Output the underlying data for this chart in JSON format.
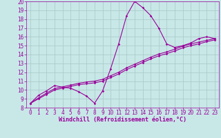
{
  "xlabel": "Windchill (Refroidissement éolien,°C)",
  "background_color": "#c8e8e8",
  "line_color": "#990099",
  "grid_color": "#a8c8c8",
  "x_data": [
    0,
    1,
    2,
    3,
    4,
    5,
    6,
    7,
    8,
    9,
    10,
    11,
    12,
    13,
    14,
    15,
    16,
    17,
    18,
    19,
    20,
    21,
    22,
    23
  ],
  "y_series1": [
    8.5,
    9.4,
    9.9,
    10.5,
    10.3,
    10.2,
    9.8,
    9.3,
    8.5,
    9.9,
    12.4,
    15.2,
    18.4,
    20.0,
    19.3,
    18.4,
    17.0,
    15.2,
    14.8,
    15.0,
    15.3,
    15.8,
    16.0,
    15.8
  ],
  "y_series2": [
    8.5,
    9.0,
    9.5,
    10.0,
    10.2,
    10.4,
    10.6,
    10.7,
    10.8,
    11.0,
    11.4,
    11.8,
    12.3,
    12.7,
    13.1,
    13.5,
    13.85,
    14.1,
    14.4,
    14.75,
    15.0,
    15.2,
    15.45,
    15.65
  ],
  "y_series3": [
    8.5,
    9.1,
    9.65,
    10.15,
    10.35,
    10.55,
    10.75,
    10.9,
    11.0,
    11.2,
    11.6,
    12.0,
    12.5,
    12.9,
    13.3,
    13.7,
    14.05,
    14.3,
    14.6,
    14.95,
    15.2,
    15.4,
    15.6,
    15.8
  ],
  "ylim": [
    8,
    20
  ],
  "xlim": [
    -0.5,
    23.5
  ],
  "yticks": [
    8,
    9,
    10,
    11,
    12,
    13,
    14,
    15,
    16,
    17,
    18,
    19,
    20
  ],
  "xticks": [
    0,
    1,
    2,
    3,
    4,
    5,
    6,
    7,
    8,
    9,
    10,
    11,
    12,
    13,
    14,
    15,
    16,
    17,
    18,
    19,
    20,
    21,
    22,
    23
  ],
  "tick_fontsize": 5.5,
  "xlabel_fontsize": 6.0,
  "marker_size": 1.8,
  "line_width": 0.8
}
